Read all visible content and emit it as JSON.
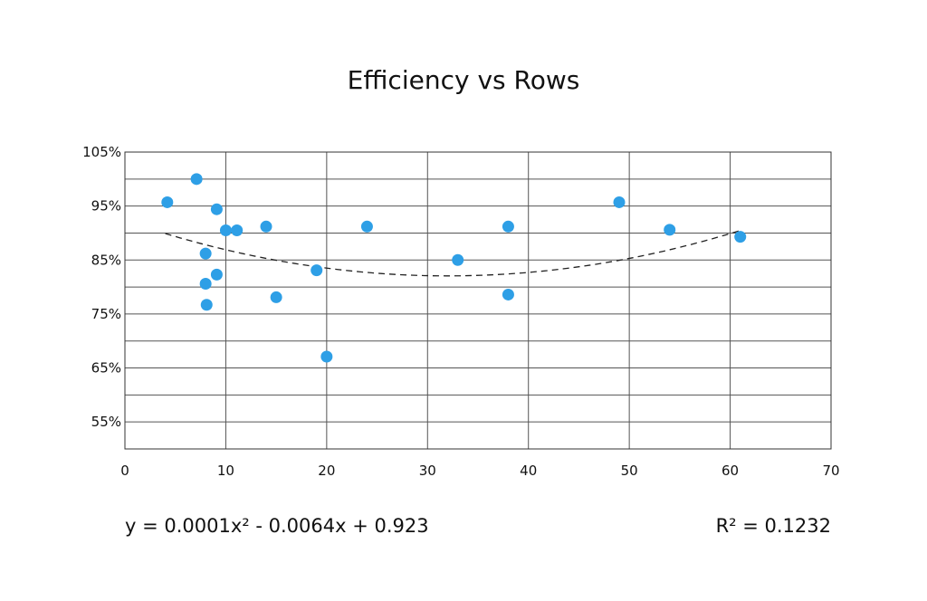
{
  "chart_data": {
    "type": "scatter",
    "title": "Efficiency vs Rows",
    "xlabel": "",
    "ylabel": "",
    "xlim": [
      0,
      70
    ],
    "ylim": [
      0.5,
      1.05
    ],
    "x_ticks": [
      0,
      10,
      20,
      30,
      40,
      50,
      60,
      70
    ],
    "x_tick_labels": [
      "0",
      "10",
      "20",
      "30",
      "40",
      "50",
      "60",
      "70"
    ],
    "y_ticks": [
      0.55,
      0.65,
      0.75,
      0.85,
      0.95,
      1.05
    ],
    "y_tick_labels": [
      "55%",
      "65%",
      "75%",
      "85%",
      "95%",
      "105%"
    ],
    "grid": true,
    "legend": "none",
    "series": [
      {
        "color": "#2E9FE6",
        "points": [
          {
            "x": 4.2,
            "y": 0.957
          },
          {
            "x": 7.1,
            "y": 1.0
          },
          {
            "x": 8.0,
            "y": 0.862
          },
          {
            "x": 8.0,
            "y": 0.806
          },
          {
            "x": 8.1,
            "y": 0.767
          },
          {
            "x": 9.1,
            "y": 0.944
          },
          {
            "x": 9.1,
            "y": 0.823
          },
          {
            "x": 10.0,
            "y": 0.905
          },
          {
            "x": 11.1,
            "y": 0.905
          },
          {
            "x": 14.0,
            "y": 0.912
          },
          {
            "x": 15.0,
            "y": 0.781
          },
          {
            "x": 19.0,
            "y": 0.831
          },
          {
            "x": 20.0,
            "y": 0.671
          },
          {
            "x": 24.0,
            "y": 0.912
          },
          {
            "x": 33.0,
            "y": 0.85
          },
          {
            "x": 38.0,
            "y": 0.912
          },
          {
            "x": 38.0,
            "y": 0.786
          },
          {
            "x": 49.0,
            "y": 0.957
          },
          {
            "x": 54.0,
            "y": 0.906
          },
          {
            "x": 61.0,
            "y": 0.893
          }
        ]
      }
    ],
    "trendline": {
      "type": "polynomial",
      "coefficients": [
        0.0001,
        -0.0064,
        0.923
      ],
      "x_range": [
        4,
        61
      ],
      "style": "dashed",
      "color": "#222222",
      "equation_label": "y = 0.0001x² - 0.0064x + 0.923",
      "r2_label": "R² = 0.1232"
    }
  }
}
